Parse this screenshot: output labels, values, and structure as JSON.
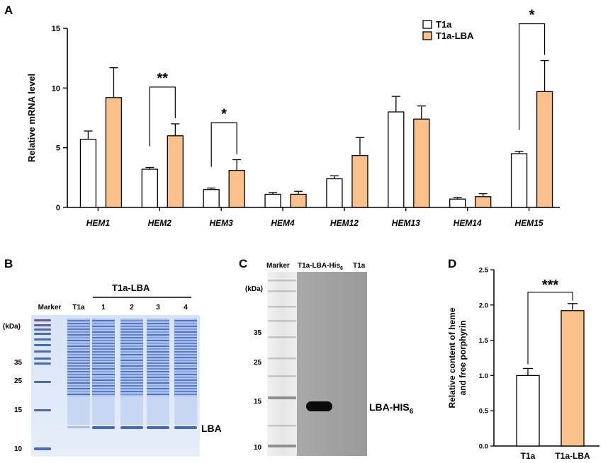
{
  "colors": {
    "orange": "#F9C08A",
    "white": "#FFFFFF",
    "stroke": "#000000"
  },
  "chart_data": [
    {
      "panel_label": "A",
      "type": "bar",
      "ylabel": "Relative mRNA level",
      "ylim": [
        0,
        15
      ],
      "yticks": [
        0,
        5,
        10,
        15
      ],
      "categories": [
        "HEM1",
        "HEM2",
        "HEM3",
        "HEM4",
        "HEM12",
        "HEM13",
        "HEM14",
        "HEM15"
      ],
      "series": [
        {
          "name": "T1a",
          "values": [
            5.7,
            3.2,
            1.5,
            1.1,
            2.4,
            8.0,
            0.7,
            4.5
          ],
          "errors": [
            0.7,
            0.15,
            0.12,
            0.15,
            0.25,
            1.3,
            0.15,
            0.2
          ]
        },
        {
          "name": "T1a-LBA",
          "values": [
            9.2,
            6.0,
            3.1,
            1.1,
            4.35,
            7.4,
            0.9,
            9.7
          ],
          "errors": [
            2.5,
            1.0,
            0.9,
            0.25,
            1.5,
            1.1,
            0.25,
            2.6
          ]
        }
      ],
      "legend": [
        "T1a",
        "T1a-LBA"
      ],
      "significance": [
        {
          "category": "HEM2",
          "label": "**"
        },
        {
          "category": "HEM3",
          "label": "*"
        },
        {
          "category": "HEM15",
          "label": "*"
        }
      ]
    },
    {
      "panel_label": "D",
      "type": "bar",
      "ylabel_line1": "Relative content of heme",
      "ylabel_line2": "and free porphyrin",
      "ylim": [
        0,
        2.5
      ],
      "yticks": [
        "0.0",
        "0.5",
        "1.0",
        "1.5",
        "2.0",
        "2.5"
      ],
      "categories": [
        "T1a",
        "T1a-LBA"
      ],
      "values": [
        1.0,
        1.92
      ],
      "errors": [
        0.1,
        0.1
      ],
      "significance": "***"
    }
  ],
  "panel_b": {
    "label": "B",
    "group_label": "T1a-LBA",
    "lane_labels": [
      "Marker",
      "T1a",
      "1",
      "2",
      "3",
      "4"
    ],
    "kda_label": "(kDa)",
    "mw_markers": [
      "35",
      "25",
      "15",
      "10"
    ],
    "band_label": "LBA"
  },
  "panel_c": {
    "label": "C",
    "marker_label": "Marker",
    "lane_label_main": "T1a-LBA-His",
    "lane_label_sub": "6",
    "lane_label_t1a": "T1a",
    "kda_label": "(kDa)",
    "mw_markers": [
      "35",
      "25",
      "15",
      "10"
    ],
    "band_label_main": "LBA-HIS",
    "band_label_sub": "6"
  }
}
